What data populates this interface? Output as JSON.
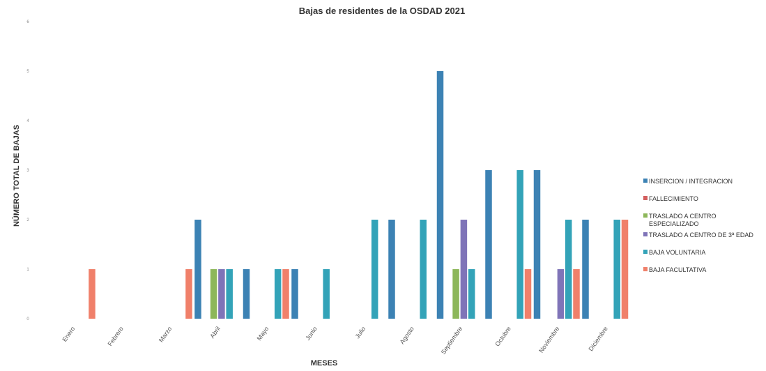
{
  "chart_data": {
    "type": "bar",
    "title": "Bajas de residentes de la OSDAD 2021",
    "xlabel": "MESES",
    "ylabel": "NÚMERO TOTAL DE BAJAS",
    "ylim": [
      0,
      6
    ],
    "yticks": [
      "0",
      "1",
      "2",
      "3",
      "4",
      "5",
      "6"
    ],
    "legend_position": "right",
    "categories": [
      "Enero",
      "Febrero",
      "Marzo",
      "Abril",
      "Mayo",
      "Junio",
      "Julio",
      "Agosto",
      "Septiembre",
      "Octubre",
      "Noviembre",
      "Diciembre"
    ],
    "series": [
      {
        "name": "INSERCION / INTEGRACION",
        "legend_lines": [
          "INSERCION / INTEGRACION"
        ],
        "color": "#3c82b4",
        "values": [
          0,
          0,
          0,
          2,
          1,
          1,
          0,
          2,
          5,
          3,
          3,
          2
        ]
      },
      {
        "name": "FALLECIMIENTO",
        "legend_lines": [
          "FALLECIMIENTO"
        ],
        "color": "#d35f5f",
        "values": [
          0,
          0,
          0,
          0,
          0,
          0,
          0,
          0,
          0,
          0,
          0,
          0
        ]
      },
      {
        "name": "TRASLADO A CENTRO ESPECIALIZADO",
        "legend_lines": [
          "TRASLADO A CENTRO",
          "ESPECIALIZADO"
        ],
        "color": "#8db75a",
        "values": [
          0,
          0,
          0,
          1,
          0,
          0,
          0,
          0,
          1,
          0,
          0,
          0
        ]
      },
      {
        "name": "TRASLADO A CENTRO DE 3ª EDAD",
        "legend_lines": [
          "TRASLADO A CENTRO DE 3ª EDAD"
        ],
        "color": "#7f74b8",
        "values": [
          0,
          0,
          0,
          1,
          0,
          0,
          0,
          0,
          2,
          0,
          1,
          0
        ]
      },
      {
        "name": "BAJA VOLUNTARIA",
        "legend_lines": [
          "BAJA VOLUNTARIA"
        ],
        "color": "#33a3b8",
        "values": [
          0,
          0,
          0,
          1,
          1,
          1,
          2,
          2,
          1,
          3,
          2,
          2
        ]
      },
      {
        "name": "BAJA FACULTATIVA",
        "legend_lines": [
          "BAJA FACULTATIVA"
        ],
        "color": "#f0806a",
        "values": [
          1,
          0,
          1,
          0,
          1,
          0,
          0,
          0,
          0,
          1,
          1,
          2
        ]
      }
    ]
  }
}
